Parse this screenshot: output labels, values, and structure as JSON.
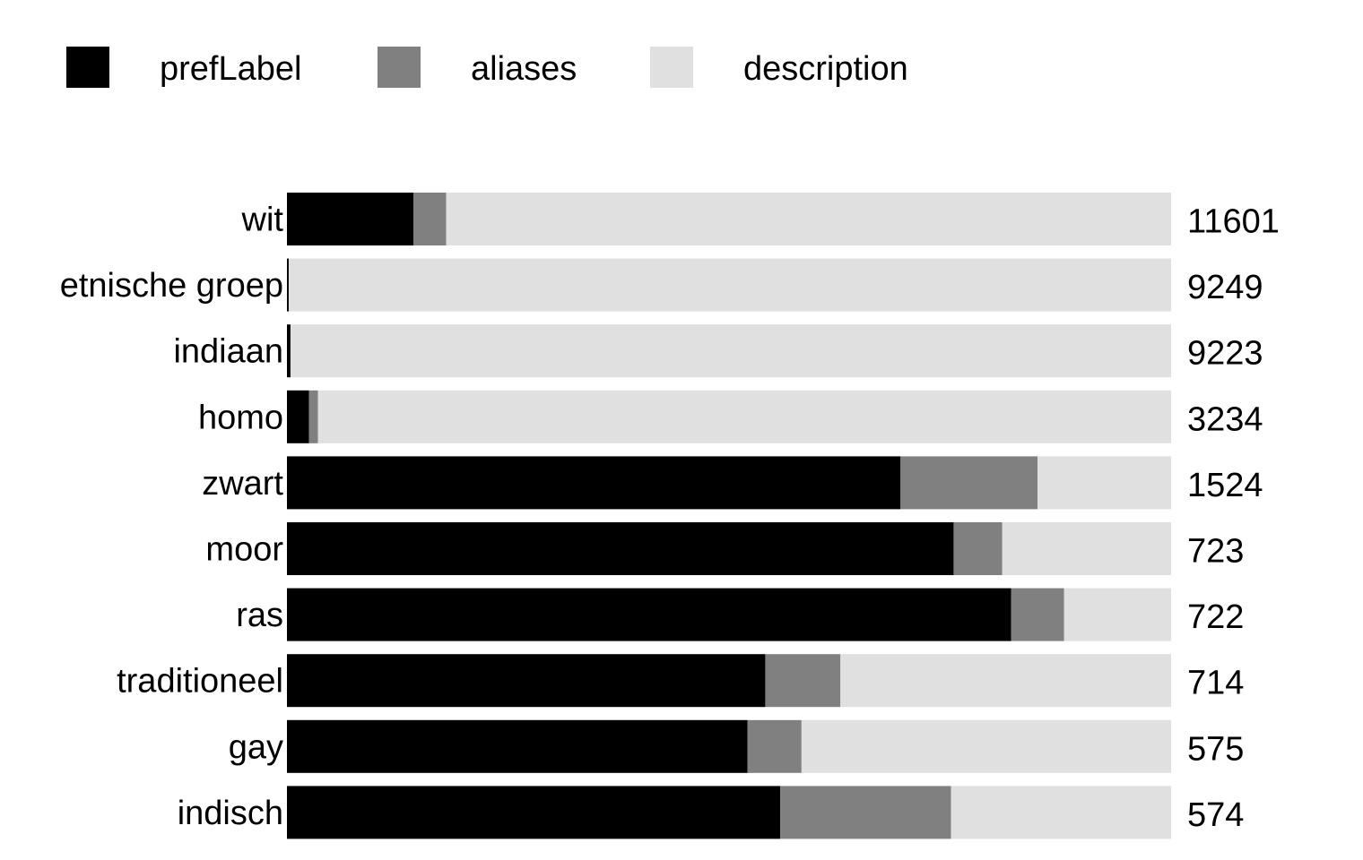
{
  "chart_data": {
    "type": "bar",
    "orientation": "horizontal",
    "stacked": true,
    "normalized": true,
    "title": "",
    "xlabel": "",
    "ylabel": "",
    "legend_position": "top-left",
    "grid": false,
    "categories": [
      "wit",
      "etnische groep",
      "indiaan",
      "homo",
      "zwart",
      "moor",
      "ras",
      "traditioneel",
      "gay",
      "indisch"
    ],
    "totals": [
      "11601",
      "9249",
      "9223",
      "3234",
      "1524",
      "723",
      "722",
      "714",
      "575",
      "574"
    ],
    "series": [
      {
        "name": "prefLabel",
        "color": "#000000",
        "values": [
          0.143,
          0.002,
          0.004,
          0.025,
          0.694,
          0.754,
          0.819,
          0.541,
          0.521,
          0.558
        ]
      },
      {
        "name": "aliases",
        "color": "#808080",
        "values": [
          0.037,
          0.0,
          0.0,
          0.01,
          0.155,
          0.055,
          0.06,
          0.085,
          0.061,
          0.193
        ]
      },
      {
        "name": "description",
        "color": "#e0e0e0",
        "values": [
          0.82,
          0.998,
          0.996,
          0.965,
          0.151,
          0.191,
          0.121,
          0.374,
          0.418,
          0.249
        ]
      }
    ]
  }
}
